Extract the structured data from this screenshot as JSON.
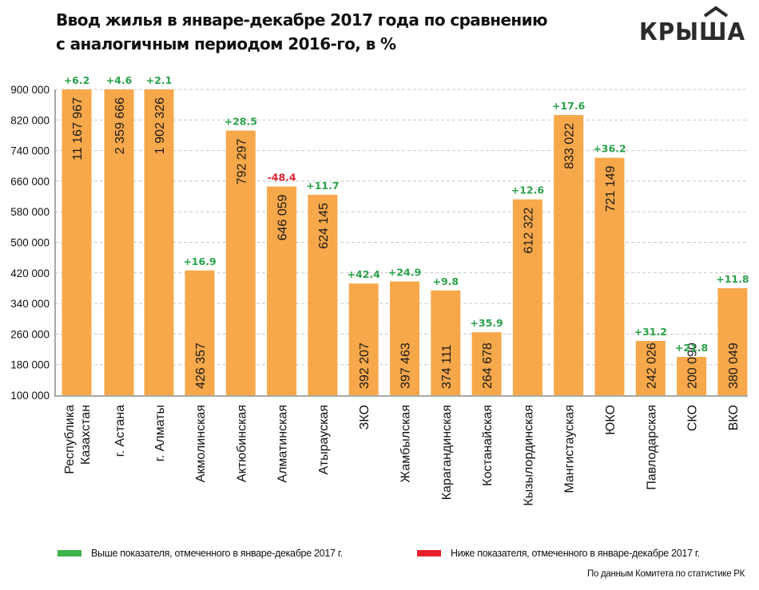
{
  "title_lines": [
    "Ввод жилья в январе-декабре 2017 года по сравнению",
    "с аналогичным периодом 2016-го, в %"
  ],
  "logo_text": "КРЫША",
  "colors": {
    "bar": "#f7a84a",
    "positive": "#2aa24a",
    "negative": "#e0202e",
    "grid": "#c8c8c8",
    "axis": "#a8a8a8"
  },
  "chart_data": {
    "type": "bar",
    "title": "Ввод жилья в январе-декабре 2017 года по сравнению с аналогичным периодом 2016-го, в %",
    "xlabel": "",
    "ylabel": "",
    "ylim": [
      100000,
      900000
    ],
    "yticks": [
      100000,
      180000,
      260000,
      340000,
      420000,
      500000,
      580000,
      660000,
      740000,
      820000,
      900000
    ],
    "ytick_labels": [
      "100 000",
      "180 000",
      "260 000",
      "340 000",
      "420 000",
      "500 000",
      "580 000",
      "660 000",
      "740 000",
      "820 000",
      "900 000"
    ],
    "grid": true,
    "categories": [
      [
        "Республика",
        "Казахстан"
      ],
      [
        "г. Астана"
      ],
      [
        "г. Алматы"
      ],
      [
        "Акмолинская"
      ],
      [
        "Актюбинская"
      ],
      [
        "Алматинская"
      ],
      [
        "Атырауская"
      ],
      [
        "ЗКО"
      ],
      [
        "Жамбылская"
      ],
      [
        "Карагандинская"
      ],
      [
        "Костанайская"
      ],
      [
        "Кызылординская"
      ],
      [
        "Мангистауская"
      ],
      [
        "ЮКО"
      ],
      [
        "Павлодарская"
      ],
      [
        "СКО"
      ],
      [
        "ВКО"
      ]
    ],
    "values": [
      11167967,
      2359666,
      1902326,
      426357,
      792297,
      646059,
      624145,
      392207,
      397463,
      374111,
      264678,
      612322,
      833022,
      721149,
      242026,
      200090,
      380049
    ],
    "value_labels": [
      "11 167 967",
      "2 359 666",
      "1 902 326",
      "426 357",
      "792 297",
      "646 059",
      "624 145",
      "392 207",
      "397 463",
      "374 111",
      "264 678",
      "612 322",
      "833 022",
      "721 149",
      "242 026",
      "200 090",
      "380 049"
    ],
    "change_labels": [
      "+6.2",
      "+4.6",
      "+2.1",
      "+16.9",
      "+28.5",
      "-48.4",
      "+11.7",
      "+42.4",
      "+24.9",
      "+9.8",
      "+35.9",
      "+12.6",
      "+17.6",
      "+36.2",
      "+31.2",
      "+21.8",
      "+11.8"
    ],
    "legend": [
      {
        "label": "Выше показателя, отмеченного в январе-декабре 2017 г.",
        "color": "#3cb44a"
      },
      {
        "label": "Ниже показателя, отмеченного в январе-декабре 2017 г.",
        "color": "#e8202a"
      }
    ],
    "legend_position": "bottom"
  },
  "source": "По данным Комитета по статистике РК"
}
